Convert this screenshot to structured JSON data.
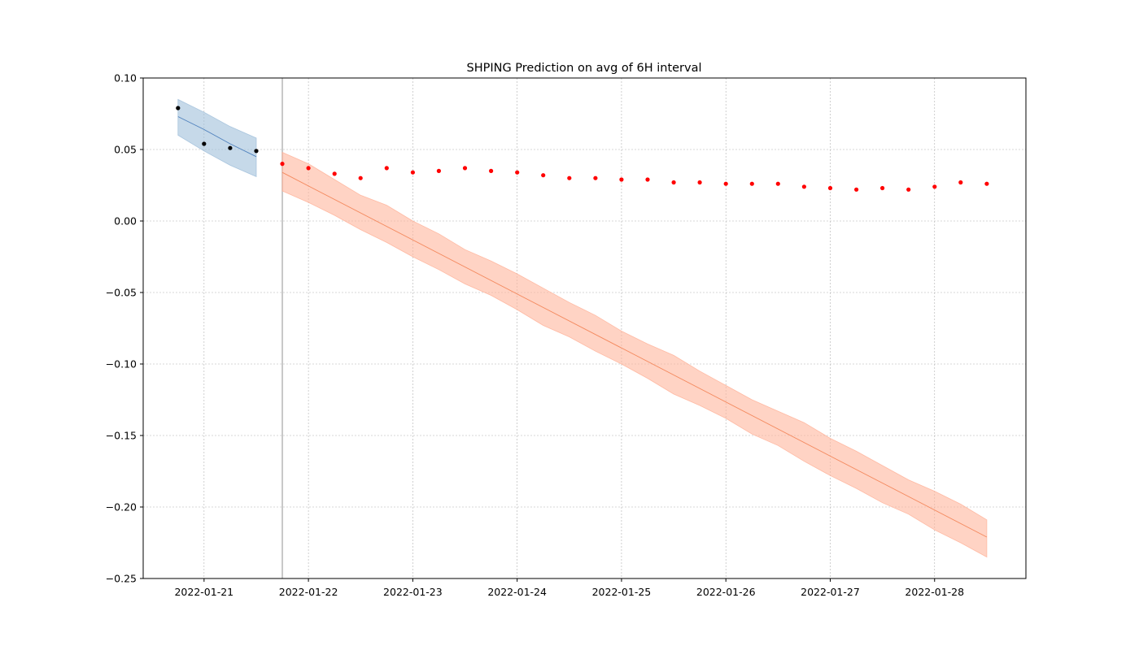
{
  "chart_data": {
    "type": "line",
    "title": "SHPING Prediction on avg of 6H interval",
    "xlabel": "",
    "ylabel": "",
    "x_axis": {
      "kind": "date",
      "range": [
        "2022-01-20T10:00",
        "2022-01-28T21:00"
      ],
      "ticks": [
        "2022-01-21",
        "2022-01-22",
        "2022-01-23",
        "2022-01-24",
        "2022-01-25",
        "2022-01-26",
        "2022-01-27",
        "2022-01-28"
      ]
    },
    "y_axis": {
      "range": [
        -0.25,
        0.1
      ],
      "ticks": [
        0.1,
        0.05,
        0.0,
        -0.05,
        -0.1,
        -0.15,
        -0.2,
        -0.25
      ],
      "tick_labels": [
        "0.10",
        "0.05",
        "0.00",
        "−0.05",
        "−0.10",
        "−0.15",
        "−0.20",
        "−0.25"
      ]
    },
    "grid": true,
    "vertical_marker": "2022-01-21T18:00",
    "colors": {
      "fit_line": "#4f81bd",
      "fit_band": "#a3c1dc",
      "forecast_line": "#f4895e",
      "forecast_band": "#ffb59c",
      "history_points": "#000000",
      "actual_points": "#ff0000",
      "marker_line": "#c8c8c8",
      "grid": "#b0b0b0"
    },
    "series": [
      {
        "kind": "fit-band",
        "x": [
          "2022-01-20T18:00",
          "2022-01-21T00:00",
          "2022-01-21T06:00",
          "2022-01-21T12:00"
        ],
        "upper": [
          0.085,
          0.076,
          0.066,
          0.058
        ],
        "lower": [
          0.06,
          0.049,
          0.039,
          0.031
        ]
      },
      {
        "kind": "fit-line",
        "x": [
          "2022-01-20T18:00",
          "2022-01-21T00:00",
          "2022-01-21T06:00",
          "2022-01-21T12:00"
        ],
        "y": [
          0.073,
          0.064,
          0.054,
          0.045
        ]
      },
      {
        "kind": "history-points",
        "x": [
          "2022-01-20T18:00",
          "2022-01-21T00:00",
          "2022-01-21T06:00",
          "2022-01-21T12:00"
        ],
        "y": [
          0.079,
          0.054,
          0.051,
          0.049
        ]
      },
      {
        "kind": "forecast-band",
        "x": [
          "2022-01-21T18:00",
          "2022-01-22T00:00",
          "2022-01-22T06:00",
          "2022-01-22T12:00",
          "2022-01-22T18:00",
          "2022-01-23T00:00",
          "2022-01-23T06:00",
          "2022-01-23T12:00",
          "2022-01-23T18:00",
          "2022-01-24T00:00",
          "2022-01-24T06:00",
          "2022-01-24T12:00",
          "2022-01-24T18:00",
          "2022-01-25T00:00",
          "2022-01-25T06:00",
          "2022-01-25T12:00",
          "2022-01-25T18:00",
          "2022-01-26T00:00",
          "2022-01-26T06:00",
          "2022-01-26T12:00",
          "2022-01-26T18:00",
          "2022-01-27T00:00",
          "2022-01-27T06:00",
          "2022-01-27T12:00",
          "2022-01-27T18:00",
          "2022-01-28T00:00",
          "2022-01-28T06:00",
          "2022-01-28T12:00"
        ],
        "upper": [
          0.048,
          0.04,
          0.029,
          0.018,
          0.011,
          0.0,
          -0.009,
          -0.02,
          -0.028,
          -0.037,
          -0.047,
          -0.057,
          -0.066,
          -0.077,
          -0.086,
          -0.094,
          -0.105,
          -0.115,
          -0.125,
          -0.133,
          -0.141,
          -0.152,
          -0.161,
          -0.171,
          -0.181,
          -0.189,
          -0.198,
          -0.209
        ],
        "lower": [
          0.021,
          0.013,
          0.004,
          -0.006,
          -0.015,
          -0.025,
          -0.034,
          -0.044,
          -0.052,
          -0.062,
          -0.073,
          -0.081,
          -0.091,
          -0.1,
          -0.11,
          -0.121,
          -0.129,
          -0.138,
          -0.149,
          -0.157,
          -0.168,
          -0.178,
          -0.187,
          -0.197,
          -0.205,
          -0.216,
          -0.225,
          -0.235
        ]
      },
      {
        "kind": "forecast-line",
        "x": [
          "2022-01-21T18:00",
          "2022-01-28T12:00"
        ],
        "y": [
          0.034,
          -0.221
        ]
      },
      {
        "kind": "actual-points",
        "x": [
          "2022-01-21T18:00",
          "2022-01-22T00:00",
          "2022-01-22T06:00",
          "2022-01-22T12:00",
          "2022-01-22T18:00",
          "2022-01-23T00:00",
          "2022-01-23T06:00",
          "2022-01-23T12:00",
          "2022-01-23T18:00",
          "2022-01-24T00:00",
          "2022-01-24T06:00",
          "2022-01-24T12:00",
          "2022-01-24T18:00",
          "2022-01-25T00:00",
          "2022-01-25T06:00",
          "2022-01-25T12:00",
          "2022-01-25T18:00",
          "2022-01-26T00:00",
          "2022-01-26T06:00",
          "2022-01-26T12:00",
          "2022-01-26T18:00",
          "2022-01-27T00:00",
          "2022-01-27T06:00",
          "2022-01-27T12:00",
          "2022-01-27T18:00",
          "2022-01-28T00:00",
          "2022-01-28T06:00",
          "2022-01-28T12:00"
        ],
        "y": [
          0.04,
          0.037,
          0.033,
          0.03,
          0.037,
          0.034,
          0.035,
          0.037,
          0.035,
          0.034,
          0.032,
          0.03,
          0.03,
          0.029,
          0.029,
          0.027,
          0.027,
          0.026,
          0.026,
          0.026,
          0.024,
          0.023,
          0.022,
          0.023,
          0.022,
          0.024,
          0.027,
          0.026
        ]
      }
    ]
  }
}
